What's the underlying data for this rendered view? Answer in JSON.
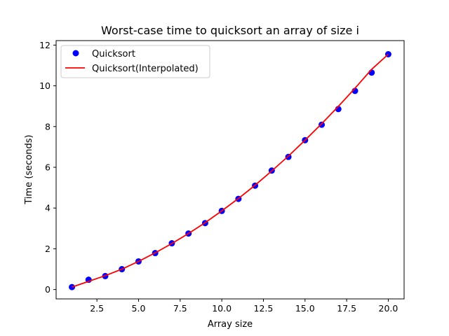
{
  "chart_data": {
    "type": "scatter",
    "title": "Worst-case time to quicksort an array of size i",
    "xlabel": "Array size",
    "ylabel": "Time (seconds)",
    "xlim": [
      0.05,
      20.95
    ],
    "ylim": [
      -0.46,
      12.22
    ],
    "x_ticks": [
      2.5,
      5.0,
      7.5,
      10.0,
      12.5,
      15.0,
      17.5,
      20.0
    ],
    "x_tick_labels": [
      "2.5",
      "5.0",
      "7.5",
      "10.0",
      "12.5",
      "15.0",
      "17.5",
      "20.0"
    ],
    "y_ticks": [
      0,
      2,
      4,
      6,
      8,
      10,
      12
    ],
    "y_tick_labels": [
      "0",
      "2",
      "4",
      "6",
      "8",
      "10",
      "12"
    ],
    "grid": false,
    "legend_position": "top-left",
    "series": [
      {
        "name": "Quicksort",
        "kind": "scatter",
        "color": "#0000ff",
        "x": [
          1,
          2,
          3,
          4,
          5,
          6,
          7,
          8,
          9,
          10,
          11,
          12,
          13,
          14,
          15,
          16,
          17,
          18,
          19,
          20
        ],
        "y": [
          0.12,
          0.48,
          0.66,
          1.0,
          1.38,
          1.79,
          2.27,
          2.75,
          3.26,
          3.86,
          4.45,
          5.1,
          5.84,
          6.51,
          7.33,
          8.09,
          8.86,
          9.75,
          10.65,
          11.55
        ]
      },
      {
        "name": "Quicksort(Interpolated)",
        "kind": "line",
        "color": "#ff0000",
        "x": [
          1,
          2,
          3,
          4,
          5,
          6,
          7,
          8,
          9,
          10,
          11,
          12,
          13,
          14,
          15,
          16,
          17,
          18,
          19,
          20
        ],
        "y": [
          0.12,
          0.4,
          0.68,
          1.0,
          1.38,
          1.8,
          2.26,
          2.75,
          3.28,
          3.86,
          4.47,
          5.12,
          5.82,
          6.55,
          7.33,
          8.14,
          8.99,
          9.88,
          10.81,
          11.55
        ]
      }
    ]
  }
}
